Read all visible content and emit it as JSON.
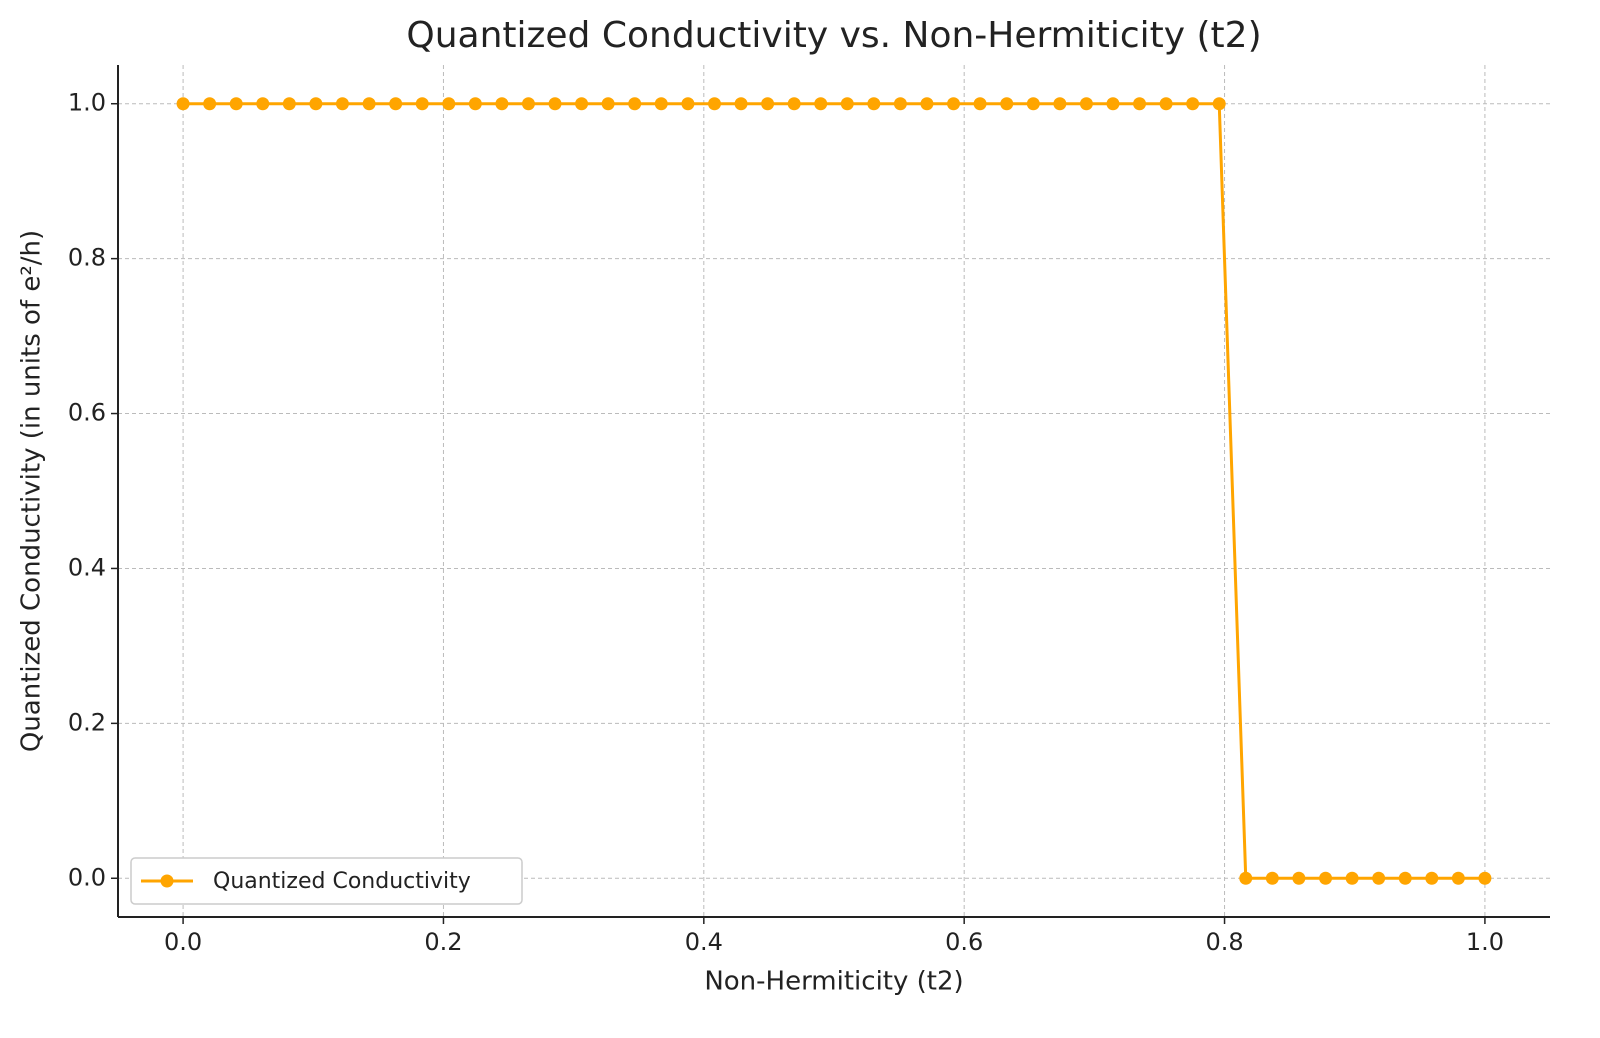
{
  "chart_data": {
    "type": "line",
    "title": "Quantized Conductivity vs. Non-Hermiticity (t2)",
    "x_label": "Non-Hermiticity (t2)",
    "y_label": "Quantized Conductivity (in units of e²/h)",
    "x": [
      0,
      0.0204,
      0.0408,
      0.0612,
      0.0816,
      0.102,
      0.1224,
      0.1429,
      0.1633,
      0.1837,
      0.2041,
      0.2245,
      0.2449,
      0.2653,
      0.2857,
      0.3061,
      0.3265,
      0.3469,
      0.3673,
      0.3878,
      0.4082,
      0.4286,
      0.449,
      0.4694,
      0.4898,
      0.5102,
      0.5306,
      0.551,
      0.5714,
      0.5918,
      0.6122,
      0.6327,
      0.6531,
      0.6735,
      0.6939,
      0.7143,
      0.7347,
      0.7551,
      0.7755,
      0.7959,
      0.8163,
      0.8367,
      0.8571,
      0.8776,
      0.898,
      0.9184,
      0.9388,
      0.9592,
      0.9796,
      1
    ],
    "series": [
      {
        "name": "Quantized Conductivity",
        "color": "#ffa500",
        "values": [
          1,
          1,
          1,
          1,
          1,
          1,
          1,
          1,
          1,
          1,
          1,
          1,
          1,
          1,
          1,
          1,
          1,
          1,
          1,
          1,
          1,
          1,
          1,
          1,
          1,
          1,
          1,
          1,
          1,
          1,
          1,
          1,
          1,
          1,
          1,
          1,
          1,
          1,
          1,
          1,
          0,
          0,
          0,
          0,
          0,
          0,
          0,
          0,
          0,
          0
        ]
      }
    ],
    "xlim": [
      -0.05,
      1.05
    ],
    "ylim": [
      -0.05,
      1.05
    ],
    "xticks": [
      {
        "value": 0,
        "label": "0.0"
      },
      0.2,
      0.4,
      0.6,
      0.8,
      {
        "value": 1,
        "label": "1.0"
      }
    ],
    "yticks": [
      {
        "value": 0,
        "label": "0.0"
      },
      0.2,
      0.4,
      0.6,
      0.8,
      {
        "value": 1,
        "label": "1.0"
      }
    ],
    "grid": true,
    "legend": "lower left"
  }
}
